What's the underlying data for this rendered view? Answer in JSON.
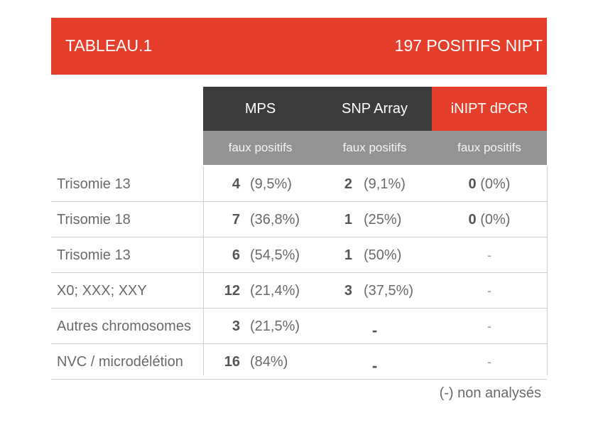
{
  "banner": {
    "title": "TABLEAU.1",
    "subtitle": "197 POSITIFS NIPT"
  },
  "headers": [
    {
      "label": "MPS",
      "sub": "faux positifs"
    },
    {
      "label": "SNP Array",
      "sub": "faux positifs"
    },
    {
      "label": "iNIPT dPCR",
      "sub": "faux positifs"
    }
  ],
  "rows": [
    {
      "label": "Trisomie 13",
      "mps_n": "4",
      "mps_p": "(9,5%)",
      "snp_n": "2",
      "snp_p": "(9,1%)",
      "dpcr_n": "0",
      "dpcr_p": "(0%)"
    },
    {
      "label": "Trisomie 18",
      "mps_n": "7",
      "mps_p": "(36,8%)",
      "snp_n": "1",
      "snp_p": "(25%)",
      "dpcr_n": "0",
      "dpcr_p": "(0%)"
    },
    {
      "label": "Trisomie 13",
      "mps_n": "6",
      "mps_p": "(54,5%)",
      "snp_n": "1",
      "snp_p": "(50%)",
      "dpcr_dash": "-"
    },
    {
      "label": "X0; XXX; XXY",
      "mps_n": "12",
      "mps_p": "(21,4%)",
      "snp_n": "3",
      "snp_p": "(37,5%)",
      "dpcr_dash": "-"
    },
    {
      "label": "Autres chromosomes",
      "mps_n": "3",
      "mps_p": "(21,5%)",
      "snp_dash": "-",
      "dpcr_dash": "-"
    },
    {
      "label": "NVC / microdélétion",
      "mps_n": "16",
      "mps_p": "(84%)",
      "snp_dash": "-",
      "dpcr_dash": "-"
    }
  ],
  "footnote": "(-) non analysés",
  "colors": {
    "accent": "#e53e2b",
    "header_dark": "#3c3c3a",
    "subheader": "#939393"
  }
}
